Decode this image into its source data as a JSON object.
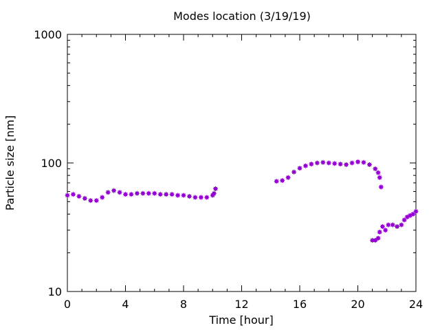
{
  "chart_data": {
    "type": "scatter",
    "title": "Modes location (3/19/19)",
    "xlabel": "Time [hour]",
    "ylabel": "Particle size [nm]",
    "xlim": [
      0,
      24
    ],
    "ylim": [
      10,
      1000
    ],
    "y_scale": "log",
    "grid": false,
    "legend": "none",
    "marker_color": "#9400d3",
    "x_ticks": [
      0,
      4,
      8,
      12,
      16,
      20,
      24
    ],
    "x_tick_labels": [
      "0",
      "4",
      "8",
      "12",
      "16",
      "20",
      "24"
    ],
    "y_ticks": [
      10,
      100,
      1000
    ],
    "y_tick_labels": [
      "10",
      "100",
      "1000"
    ],
    "series": [
      {
        "x": [
          0.0,
          0.4,
          0.8,
          1.2,
          1.6,
          2.0,
          2.4,
          2.8,
          3.2,
          3.6,
          4.0,
          4.4,
          4.8,
          5.2,
          5.6,
          6.0,
          6.4,
          6.8,
          7.2,
          7.6,
          8.0,
          8.4,
          8.8,
          9.2,
          9.6,
          10.0,
          10.1,
          10.2
        ],
        "y": [
          56,
          57,
          55,
          53,
          51,
          51,
          54,
          59,
          61,
          59,
          57,
          57,
          58,
          58,
          58,
          58,
          57,
          57,
          57,
          56,
          56,
          55,
          54,
          54,
          54,
          56,
          58,
          63
        ]
      },
      {
        "x": [
          14.4,
          14.8,
          15.2,
          15.6,
          16.0,
          16.4,
          16.8,
          17.2,
          17.6,
          18.0,
          18.4,
          18.8,
          19.2,
          19.6,
          20.0,
          20.4,
          20.8,
          21.2,
          21.4,
          21.5,
          21.6
        ],
        "y": [
          72,
          73,
          77,
          85,
          91,
          95,
          98,
          100,
          101,
          100,
          99,
          98,
          97,
          100,
          102,
          101,
          97,
          90,
          84,
          77,
          65
        ]
      },
      {
        "x": [
          21.0,
          21.2,
          21.4,
          21.5,
          21.7,
          21.9,
          22.1,
          22.4,
          22.7,
          23.0,
          23.2,
          23.4,
          23.6,
          23.8,
          24.0
        ],
        "y": [
          25,
          25,
          26,
          29,
          32,
          30,
          33,
          33,
          32,
          33,
          36,
          38,
          39,
          40,
          42
        ]
      }
    ]
  }
}
